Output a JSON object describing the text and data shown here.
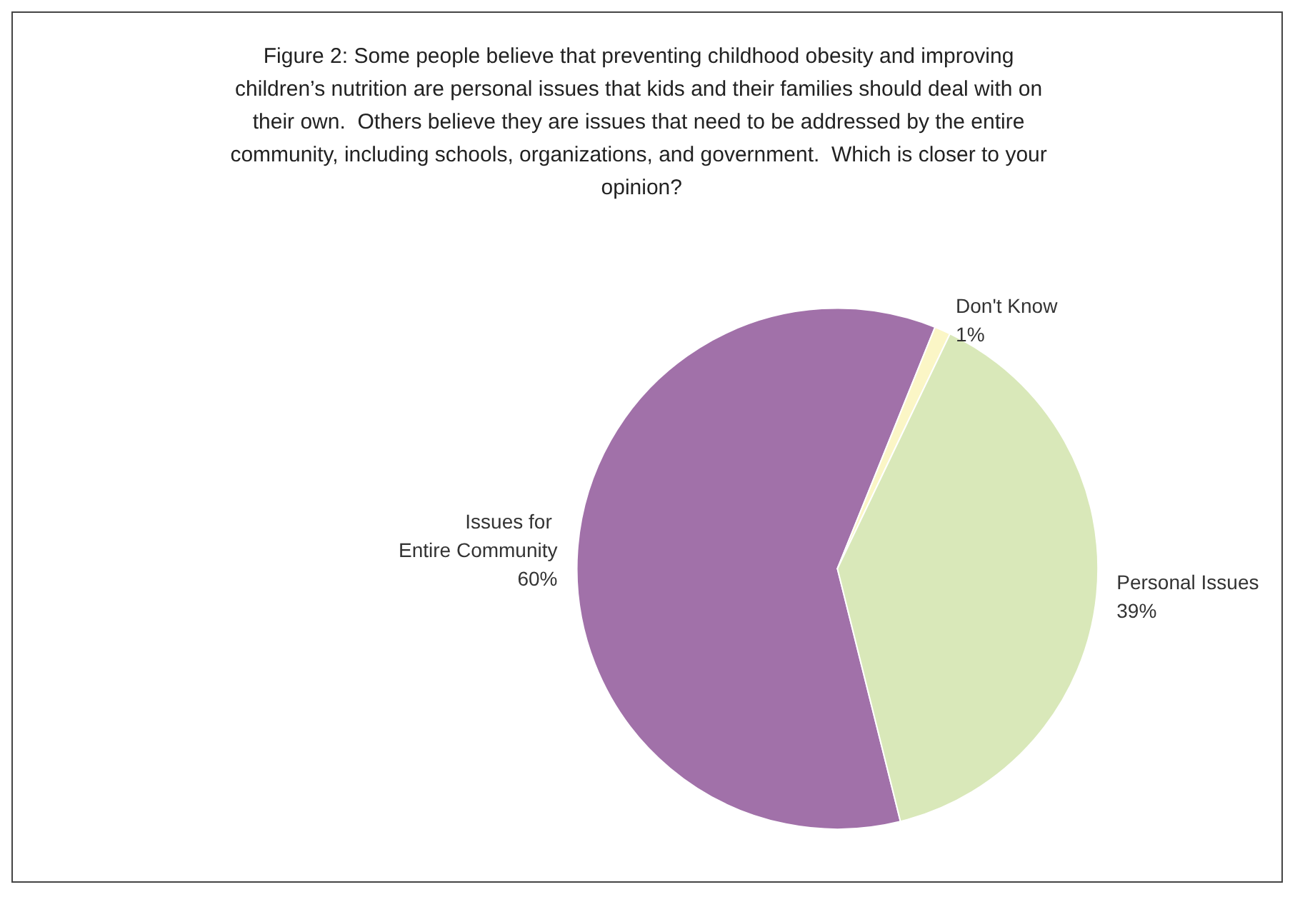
{
  "chart_data": {
    "type": "pie",
    "title": "Figure 2: Some people believe that preventing childhood obesity and improving children’s nutrition are personal issues that kids and their families should deal with on their own.  Others believe they are issues that need to be addressed by the entire community, including schools, organizations, and government.  Which is closer to your opinion?",
    "categories": [
      "Issues for Entire Community",
      "Don't Know",
      "Personal Issues"
    ],
    "values": [
      60,
      1,
      39
    ],
    "value_labels": [
      "60%",
      "1%",
      "39%"
    ],
    "colors": [
      "#a171a9",
      "#fbf6c6",
      "#d9e8b9"
    ],
    "legend": false
  }
}
